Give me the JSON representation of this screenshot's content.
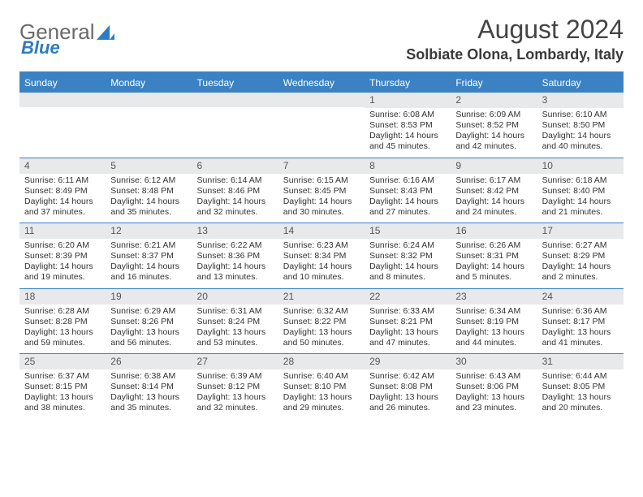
{
  "logo": {
    "text1": "General",
    "text2": "Blue"
  },
  "title": "August 2024",
  "location": "Solbiate Olona, Lombardy, Italy",
  "header_bg": "#3b82c4",
  "daynum_bg": "#e8e9ea",
  "text_color": "#333333",
  "weekdays": [
    "Sunday",
    "Monday",
    "Tuesday",
    "Wednesday",
    "Thursday",
    "Friday",
    "Saturday"
  ],
  "weeks": [
    [
      null,
      null,
      null,
      null,
      {
        "n": "1",
        "sunrise": "Sunrise: 6:08 AM",
        "sunset": "Sunset: 8:53 PM",
        "day1": "Daylight: 14 hours",
        "day2": "and 45 minutes."
      },
      {
        "n": "2",
        "sunrise": "Sunrise: 6:09 AM",
        "sunset": "Sunset: 8:52 PM",
        "day1": "Daylight: 14 hours",
        "day2": "and 42 minutes."
      },
      {
        "n": "3",
        "sunrise": "Sunrise: 6:10 AM",
        "sunset": "Sunset: 8:50 PM",
        "day1": "Daylight: 14 hours",
        "day2": "and 40 minutes."
      }
    ],
    [
      {
        "n": "4",
        "sunrise": "Sunrise: 6:11 AM",
        "sunset": "Sunset: 8:49 PM",
        "day1": "Daylight: 14 hours",
        "day2": "and 37 minutes."
      },
      {
        "n": "5",
        "sunrise": "Sunrise: 6:12 AM",
        "sunset": "Sunset: 8:48 PM",
        "day1": "Daylight: 14 hours",
        "day2": "and 35 minutes."
      },
      {
        "n": "6",
        "sunrise": "Sunrise: 6:14 AM",
        "sunset": "Sunset: 8:46 PM",
        "day1": "Daylight: 14 hours",
        "day2": "and 32 minutes."
      },
      {
        "n": "7",
        "sunrise": "Sunrise: 6:15 AM",
        "sunset": "Sunset: 8:45 PM",
        "day1": "Daylight: 14 hours",
        "day2": "and 30 minutes."
      },
      {
        "n": "8",
        "sunrise": "Sunrise: 6:16 AM",
        "sunset": "Sunset: 8:43 PM",
        "day1": "Daylight: 14 hours",
        "day2": "and 27 minutes."
      },
      {
        "n": "9",
        "sunrise": "Sunrise: 6:17 AM",
        "sunset": "Sunset: 8:42 PM",
        "day1": "Daylight: 14 hours",
        "day2": "and 24 minutes."
      },
      {
        "n": "10",
        "sunrise": "Sunrise: 6:18 AM",
        "sunset": "Sunset: 8:40 PM",
        "day1": "Daylight: 14 hours",
        "day2": "and 21 minutes."
      }
    ],
    [
      {
        "n": "11",
        "sunrise": "Sunrise: 6:20 AM",
        "sunset": "Sunset: 8:39 PM",
        "day1": "Daylight: 14 hours",
        "day2": "and 19 minutes."
      },
      {
        "n": "12",
        "sunrise": "Sunrise: 6:21 AM",
        "sunset": "Sunset: 8:37 PM",
        "day1": "Daylight: 14 hours",
        "day2": "and 16 minutes."
      },
      {
        "n": "13",
        "sunrise": "Sunrise: 6:22 AM",
        "sunset": "Sunset: 8:36 PM",
        "day1": "Daylight: 14 hours",
        "day2": "and 13 minutes."
      },
      {
        "n": "14",
        "sunrise": "Sunrise: 6:23 AM",
        "sunset": "Sunset: 8:34 PM",
        "day1": "Daylight: 14 hours",
        "day2": "and 10 minutes."
      },
      {
        "n": "15",
        "sunrise": "Sunrise: 6:24 AM",
        "sunset": "Sunset: 8:32 PM",
        "day1": "Daylight: 14 hours",
        "day2": "and 8 minutes."
      },
      {
        "n": "16",
        "sunrise": "Sunrise: 6:26 AM",
        "sunset": "Sunset: 8:31 PM",
        "day1": "Daylight: 14 hours",
        "day2": "and 5 minutes."
      },
      {
        "n": "17",
        "sunrise": "Sunrise: 6:27 AM",
        "sunset": "Sunset: 8:29 PM",
        "day1": "Daylight: 14 hours",
        "day2": "and 2 minutes."
      }
    ],
    [
      {
        "n": "18",
        "sunrise": "Sunrise: 6:28 AM",
        "sunset": "Sunset: 8:28 PM",
        "day1": "Daylight: 13 hours",
        "day2": "and 59 minutes."
      },
      {
        "n": "19",
        "sunrise": "Sunrise: 6:29 AM",
        "sunset": "Sunset: 8:26 PM",
        "day1": "Daylight: 13 hours",
        "day2": "and 56 minutes."
      },
      {
        "n": "20",
        "sunrise": "Sunrise: 6:31 AM",
        "sunset": "Sunset: 8:24 PM",
        "day1": "Daylight: 13 hours",
        "day2": "and 53 minutes."
      },
      {
        "n": "21",
        "sunrise": "Sunrise: 6:32 AM",
        "sunset": "Sunset: 8:22 PM",
        "day1": "Daylight: 13 hours",
        "day2": "and 50 minutes."
      },
      {
        "n": "22",
        "sunrise": "Sunrise: 6:33 AM",
        "sunset": "Sunset: 8:21 PM",
        "day1": "Daylight: 13 hours",
        "day2": "and 47 minutes."
      },
      {
        "n": "23",
        "sunrise": "Sunrise: 6:34 AM",
        "sunset": "Sunset: 8:19 PM",
        "day1": "Daylight: 13 hours",
        "day2": "and 44 minutes."
      },
      {
        "n": "24",
        "sunrise": "Sunrise: 6:36 AM",
        "sunset": "Sunset: 8:17 PM",
        "day1": "Daylight: 13 hours",
        "day2": "and 41 minutes."
      }
    ],
    [
      {
        "n": "25",
        "sunrise": "Sunrise: 6:37 AM",
        "sunset": "Sunset: 8:15 PM",
        "day1": "Daylight: 13 hours",
        "day2": "and 38 minutes."
      },
      {
        "n": "26",
        "sunrise": "Sunrise: 6:38 AM",
        "sunset": "Sunset: 8:14 PM",
        "day1": "Daylight: 13 hours",
        "day2": "and 35 minutes."
      },
      {
        "n": "27",
        "sunrise": "Sunrise: 6:39 AM",
        "sunset": "Sunset: 8:12 PM",
        "day1": "Daylight: 13 hours",
        "day2": "and 32 minutes."
      },
      {
        "n": "28",
        "sunrise": "Sunrise: 6:40 AM",
        "sunset": "Sunset: 8:10 PM",
        "day1": "Daylight: 13 hours",
        "day2": "and 29 minutes."
      },
      {
        "n": "29",
        "sunrise": "Sunrise: 6:42 AM",
        "sunset": "Sunset: 8:08 PM",
        "day1": "Daylight: 13 hours",
        "day2": "and 26 minutes."
      },
      {
        "n": "30",
        "sunrise": "Sunrise: 6:43 AM",
        "sunset": "Sunset: 8:06 PM",
        "day1": "Daylight: 13 hours",
        "day2": "and 23 minutes."
      },
      {
        "n": "31",
        "sunrise": "Sunrise: 6:44 AM",
        "sunset": "Sunset: 8:05 PM",
        "day1": "Daylight: 13 hours",
        "day2": "and 20 minutes."
      }
    ]
  ]
}
